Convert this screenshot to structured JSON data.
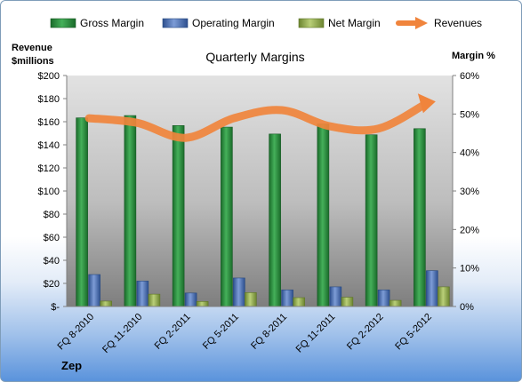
{
  "chart_data": {
    "type": "bar",
    "title": "Quarterly Margins",
    "company": "Zep",
    "y_left_label_line1": "Revenue",
    "y_left_label_line2": "$millions",
    "y_right_label": "Margin %",
    "categories": [
      "FQ 8-2010",
      "FQ 11-2010",
      "FQ 2-2011",
      "FQ 5-2011",
      "FQ 8-2011",
      "FQ 11-2011",
      "FQ 2-2012",
      "FQ 5-2012"
    ],
    "y_left_range": [
      0,
      200
    ],
    "y_left_ticks": [
      "$-",
      "$20",
      "$40",
      "$60",
      "$80",
      "$100",
      "$120",
      "$140",
      "$160",
      "$180",
      "$200"
    ],
    "y_right_range": [
      0,
      60
    ],
    "y_right_ticks": [
      "0%",
      "10%",
      "20%",
      "30%",
      "40%",
      "50%",
      "60%"
    ],
    "series": [
      {
        "name": "Gross Margin",
        "axis": "right",
        "type": "bar",
        "color": "#2e8b3e",
        "values": [
          49,
          49.6,
          47,
          46.6,
          44.8,
          47.4,
          44.6,
          46.2
        ]
      },
      {
        "name": "Operating Margin",
        "axis": "right",
        "type": "bar",
        "color": "#4a6fb0",
        "values": [
          8.3,
          6.6,
          3.5,
          7.4,
          4.3,
          5.1,
          4.3,
          9.3
        ]
      },
      {
        "name": "Net Margin",
        "axis": "right",
        "type": "bar",
        "color": "#8fa84a",
        "values": [
          1.4,
          3.2,
          1.3,
          3.6,
          2.3,
          2.4,
          1.6,
          5.1
        ]
      },
      {
        "name": "Revenues",
        "axis": "left",
        "type": "line",
        "color": "#f0843c",
        "values": [
          163,
          159,
          146,
          163,
          170,
          156,
          154,
          176
        ]
      }
    ],
    "grid": false,
    "legend_position": "top"
  }
}
